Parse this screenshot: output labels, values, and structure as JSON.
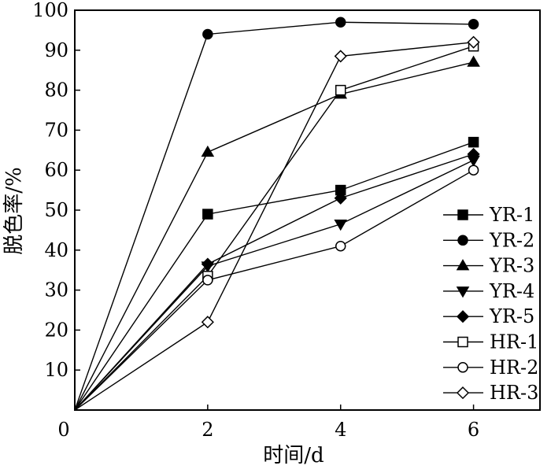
{
  "chart_data": {
    "type": "line",
    "title": "",
    "xlabel": "时间/d",
    "ylabel": "脱色率/%",
    "xlim": [
      0,
      7
    ],
    "ylim": [
      0,
      100
    ],
    "xticks": [
      0,
      2,
      4,
      6
    ],
    "yticks": [
      0,
      10,
      20,
      30,
      40,
      50,
      60,
      70,
      80,
      90,
      100
    ],
    "x": [
      0,
      2,
      4,
      6
    ],
    "grid": false,
    "legend_position": "right",
    "series": [
      {
        "name": "YR-1",
        "marker": "square-filled",
        "values": [
          0,
          49,
          55,
          67
        ]
      },
      {
        "name": "YR-2",
        "marker": "circle-filled",
        "values": [
          0,
          94,
          97,
          96.5
        ]
      },
      {
        "name": "YR-3",
        "marker": "triangle-up-filled",
        "values": [
          0,
          64.5,
          79,
          87
        ]
      },
      {
        "name": "YR-4",
        "marker": "triangle-down-filled",
        "values": [
          0,
          36,
          46.5,
          62.5
        ]
      },
      {
        "name": "YR-5",
        "marker": "diamond-filled",
        "values": [
          0,
          36.5,
          53,
          64
        ]
      },
      {
        "name": "HR-1",
        "marker": "square-open",
        "values": [
          0,
          33.5,
          80,
          91
        ]
      },
      {
        "name": "HR-2",
        "marker": "circle-open",
        "values": [
          0,
          32.5,
          41,
          60
        ]
      },
      {
        "name": "HR-3",
        "marker": "diamond-open",
        "values": [
          0,
          22,
          88.5,
          92
        ]
      }
    ]
  }
}
